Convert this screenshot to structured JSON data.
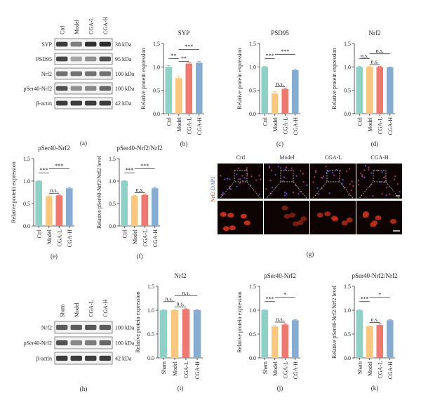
{
  "colors": {
    "ctrl": "#8ed1c6",
    "model": "#fbc77c",
    "cgal": "#f0786e",
    "cgah": "#86acd1",
    "axis": "#333333",
    "blot_bg": "#f3f3f3",
    "band": "#1b1b1b",
    "fluor_bg": "#0d0303",
    "fluor_cell": "#c8321a"
  },
  "blot_a": {
    "letter": "(a)",
    "lanes": [
      "Ctrl",
      "Model",
      "CGA-L",
      "CGA-H"
    ],
    "rows": [
      {
        "protein": "SYP",
        "kda": "38 kDa",
        "intensity": [
          0.85,
          0.55,
          0.9,
          0.92
        ]
      },
      {
        "protein": "PSD95",
        "kda": "95 kDa",
        "intensity": [
          0.8,
          0.35,
          0.45,
          0.75
        ]
      },
      {
        "protein": "Nrf2",
        "kda": "100 kDa",
        "intensity": [
          0.6,
          0.6,
          0.6,
          0.6
        ]
      },
      {
        "protein": "pSer40-Nrf2",
        "kda": "100 kDa",
        "intensity": [
          0.75,
          0.45,
          0.5,
          0.65
        ]
      },
      {
        "protein": "β-actin",
        "kda": "42 kDa",
        "intensity": [
          0.85,
          0.85,
          0.85,
          0.85
        ]
      }
    ]
  },
  "blot_h": {
    "letter": "(h)",
    "lanes": [
      "Sham",
      "Model",
      "CGA-L",
      "CGA-H"
    ],
    "rows": [
      {
        "protein": "Nrf2",
        "kda": "100 kDa",
        "intensity": [
          0.7,
          0.7,
          0.72,
          0.7
        ]
      },
      {
        "protein": "pSer40-Nrf2",
        "kda": "100 kDa",
        "intensity": [
          0.75,
          0.5,
          0.55,
          0.65
        ]
      },
      {
        "protein": "β-actin",
        "kda": "42 kDa",
        "intensity": [
          0.85,
          0.85,
          0.85,
          0.85
        ]
      }
    ]
  },
  "panel_g": {
    "letter": "(g)",
    "columns": [
      "Ctrl",
      "Model",
      "CGA-L",
      "CGA-H"
    ],
    "stain_label_red": "Nrf2",
    "stain_label_blue": " DAPI"
  },
  "chart_data": [
    {
      "id": "b",
      "letter": "(b)",
      "type": "bar",
      "title": "SYP",
      "categories": [
        "Ctrl",
        "Model",
        "CGA-L",
        "CGA-H"
      ],
      "values": [
        1.0,
        0.76,
        1.07,
        1.09
      ],
      "errors": [
        0.03,
        0.04,
        0.03,
        0.03
      ],
      "ylabel": "Relative protein expression",
      "ylim": [
        0,
        1.5
      ],
      "yticks": [
        0.0,
        0.5,
        1.0,
        1.5
      ],
      "significance": [
        {
          "from": 0,
          "to": 1,
          "label": "**"
        },
        {
          "from": 1,
          "to": 2,
          "label": "**"
        },
        {
          "from": 1,
          "to": 3,
          "label": "***"
        }
      ]
    },
    {
      "id": "c",
      "letter": "(c)",
      "type": "bar",
      "title": "PSD95",
      "categories": [
        "Ctrl",
        "Model",
        "CGA-L",
        "CGA-H"
      ],
      "values": [
        1.0,
        0.43,
        0.53,
        0.93
      ],
      "errors": [
        0.01,
        0.04,
        0.02,
        0.02
      ],
      "ylabel": "Relative protein expression",
      "ylim": [
        0,
        1.5
      ],
      "yticks": [
        0.0,
        0.5,
        1.0,
        1.5
      ],
      "significance": [
        {
          "from": 0,
          "to": 1,
          "label": "***"
        },
        {
          "from": 1,
          "to": 2,
          "label": "n.s."
        },
        {
          "from": 1,
          "to": 3,
          "label": "***"
        }
      ]
    },
    {
      "id": "d",
      "letter": "(d)",
      "type": "bar",
      "title": "Nrf2",
      "categories": [
        "Ctrl",
        "Model",
        "CGA-L",
        "CGA-H"
      ],
      "values": [
        1.0,
        1.0,
        1.0,
        0.99
      ],
      "errors": [
        0.01,
        0.01,
        0.01,
        0.01
      ],
      "ylabel": "Relative protein expression",
      "ylim": [
        0,
        1.5
      ],
      "yticks": [
        0.0,
        0.5,
        1.0,
        1.5
      ],
      "significance": [
        {
          "from": 0,
          "to": 1,
          "label": "n.s."
        },
        {
          "from": 1,
          "to": 2,
          "label": "n.s."
        },
        {
          "from": 1,
          "to": 3,
          "label": "n.s."
        }
      ]
    },
    {
      "id": "e",
      "letter": "(e)",
      "type": "bar",
      "title": "pSer40-Nrf2",
      "categories": [
        "Ctrl",
        "Model",
        "CGA-L",
        "CGA-H"
      ],
      "values": [
        1.0,
        0.66,
        0.68,
        0.84
      ],
      "errors": [
        0.01,
        0.01,
        0.01,
        0.02
      ],
      "ylabel": "Relative protein expression",
      "ylim": [
        0,
        1.5
      ],
      "yticks": [
        0.0,
        0.5,
        1.0,
        1.5
      ],
      "significance": [
        {
          "from": 0,
          "to": 1,
          "label": "***"
        },
        {
          "from": 1,
          "to": 2,
          "label": "n.s."
        },
        {
          "from": 1,
          "to": 3,
          "label": "***"
        }
      ]
    },
    {
      "id": "f",
      "letter": "(f)",
      "type": "bar",
      "title": "pSer40-Nrf2/Nrf2",
      "categories": [
        "Ctrl",
        "Model",
        "CGA-L",
        "CGA-H"
      ],
      "values": [
        1.0,
        0.67,
        0.69,
        0.84
      ],
      "errors": [
        0.01,
        0.01,
        0.02,
        0.02
      ],
      "ylabel": "Relative pSer40-Nrf2/Nrf2 level",
      "ylim": [
        0,
        1.5
      ],
      "yticks": [
        0.0,
        0.5,
        1.0,
        1.5
      ],
      "significance": [
        {
          "from": 0,
          "to": 1,
          "label": "***"
        },
        {
          "from": 1,
          "to": 2,
          "label": "n.s."
        },
        {
          "from": 1,
          "to": 3,
          "label": "***"
        }
      ]
    },
    {
      "id": "i",
      "letter": "(i)",
      "type": "bar",
      "title": "Nrf2",
      "categories": [
        "Sham",
        "Model",
        "CGA-L",
        "CGA-H"
      ],
      "values": [
        1.0,
        1.0,
        1.02,
        1.0
      ],
      "errors": [
        0.01,
        0.01,
        0.01,
        0.01
      ],
      "ylabel": "Relative protein expression",
      "ylim": [
        0,
        1.5
      ],
      "yticks": [
        0.0,
        0.5,
        1.0,
        1.5
      ],
      "significance": [
        {
          "from": 0,
          "to": 1,
          "label": "n.s."
        },
        {
          "from": 1,
          "to": 2,
          "label": "n.s."
        },
        {
          "from": 1,
          "to": 3,
          "label": "n.s."
        }
      ]
    },
    {
      "id": "j",
      "letter": "(j)",
      "type": "bar",
      "title": "pSer40-Nrf2",
      "categories": [
        "Sham",
        "Model",
        "CGA-L",
        "CGA-H"
      ],
      "values": [
        1.0,
        0.66,
        0.7,
        0.79
      ],
      "errors": [
        0.01,
        0.02,
        0.02,
        0.01
      ],
      "ylabel": "Relative protein expression",
      "ylim": [
        0,
        1.5
      ],
      "yticks": [
        0.0,
        0.5,
        1.0,
        1.5
      ],
      "significance": [
        {
          "from": 0,
          "to": 1,
          "label": "***"
        },
        {
          "from": 1,
          "to": 2,
          "label": "n.s."
        },
        {
          "from": 1,
          "to": 3,
          "label": "*"
        }
      ]
    },
    {
      "id": "k",
      "letter": "(k)",
      "type": "bar",
      "title": "pSer40-Nrf2/Nrf2",
      "categories": [
        "Sham",
        "Model",
        "CGA-L",
        "CGA-H"
      ],
      "values": [
        1.0,
        0.66,
        0.69,
        0.79
      ],
      "errors": [
        0.01,
        0.01,
        0.03,
        0.01
      ],
      "ylabel": "Relative pSer40-Nrf2/Nrf2 level",
      "ylim": [
        0,
        1.5
      ],
      "yticks": [
        0.0,
        0.5,
        1.0,
        1.5
      ],
      "significance": [
        {
          "from": 0,
          "to": 1,
          "label": "***"
        },
        {
          "from": 1,
          "to": 2,
          "label": "n.s."
        },
        {
          "from": 1,
          "to": 3,
          "label": "*"
        }
      ]
    }
  ]
}
